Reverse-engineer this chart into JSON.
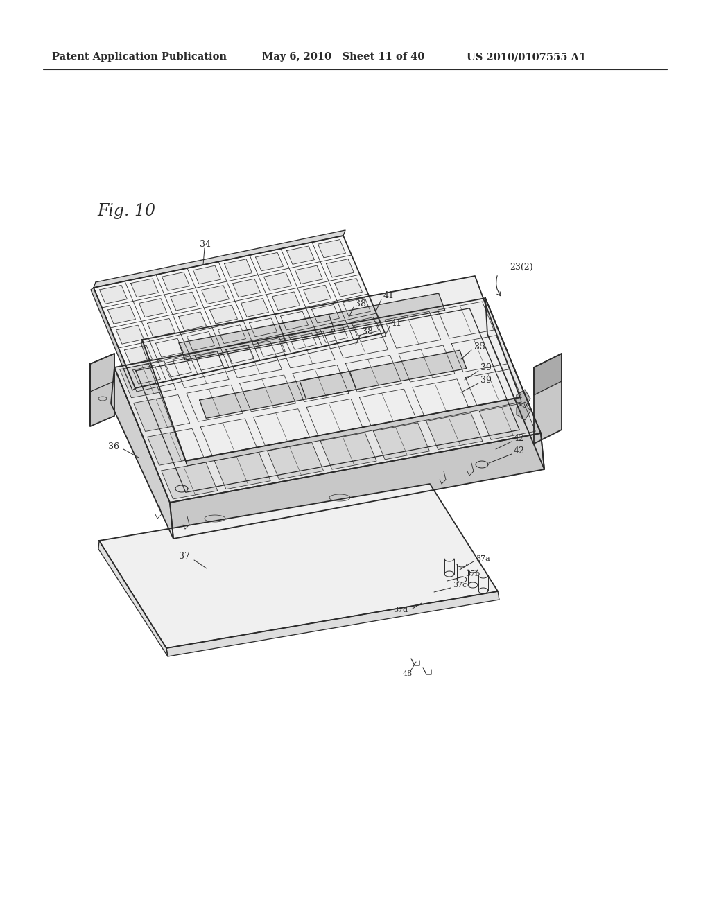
{
  "bg_color": "#ffffff",
  "line_color": "#2a2a2a",
  "header_left": "Patent Application Publication",
  "header_mid": "May 6, 2010   Sheet 11 of 40",
  "header_right": "US 2010/0107555 A1",
  "fig_label": "Fig. 10"
}
